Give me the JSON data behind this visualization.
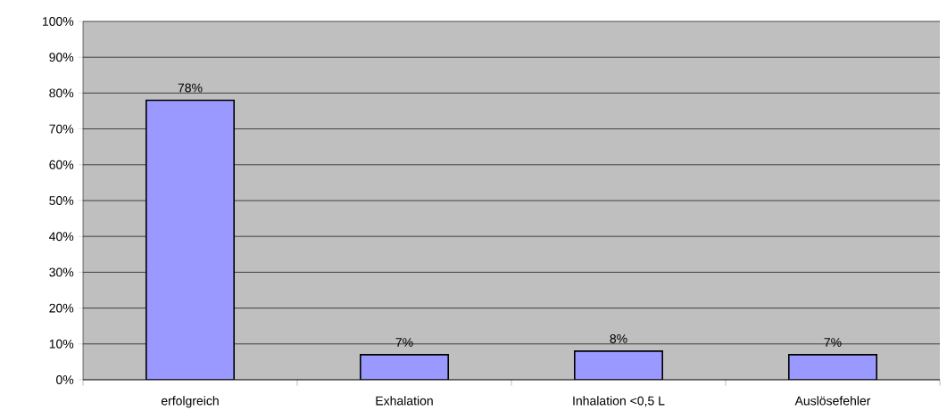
{
  "chart_data": {
    "type": "bar",
    "categories": [
      "erfolgreich",
      "Exhalation",
      "Inhalation <0,5 L",
      "Auslösefehler"
    ],
    "values": [
      78,
      7,
      8,
      7
    ],
    "value_labels": [
      "78%",
      "7%",
      "8%",
      "7%"
    ],
    "color": "#9999ff",
    "ylim": [
      0,
      100
    ],
    "yticks": [
      {
        "value": 0,
        "label": "0%"
      },
      {
        "value": 10,
        "label": "10%"
      },
      {
        "value": 20,
        "label": "20%"
      },
      {
        "value": 30,
        "label": "30%"
      },
      {
        "value": 40,
        "label": "40%"
      },
      {
        "value": 50,
        "label": "50%"
      },
      {
        "value": 60,
        "label": "60%"
      },
      {
        "value": 70,
        "label": "70%"
      },
      {
        "value": 80,
        "label": "80%"
      },
      {
        "value": 90,
        "label": "90%"
      },
      {
        "value": 100,
        "label": "100%"
      }
    ],
    "grid": "y"
  }
}
